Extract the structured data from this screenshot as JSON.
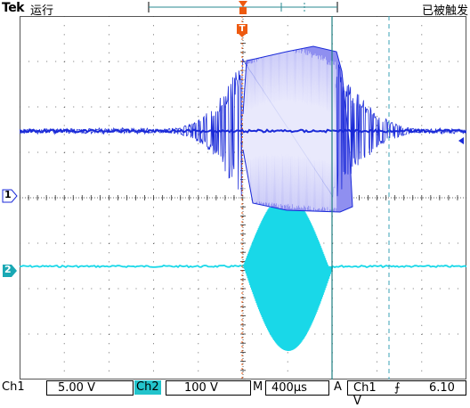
{
  "header": {
    "brand": "Tek",
    "run_state": "运行",
    "trigger_state": "已被触发"
  },
  "markers": {
    "ch1": "1",
    "ch2": "2",
    "trigger": "T"
  },
  "footer": {
    "ch1_label": "Ch1",
    "ch1_scale": "5.00 V",
    "ch2_label": "Ch2",
    "ch2_scale": "100 V",
    "timebase_label": "M",
    "timebase_value": "400µs",
    "trigger_mode": "A",
    "trigger_source": "Ch1",
    "trigger_slope": "⨍",
    "trigger_level": "6.10 V"
  },
  "colors": {
    "ch1": "#1a2ad8",
    "ch1_fill": "#8f8ff0",
    "ch2": "#19d8e8",
    "trigger": "#ee5a10",
    "grid": "#444444",
    "cursor_teal": "#1d7f82",
    "cursor_dashed": "#3aa0b4"
  }
}
